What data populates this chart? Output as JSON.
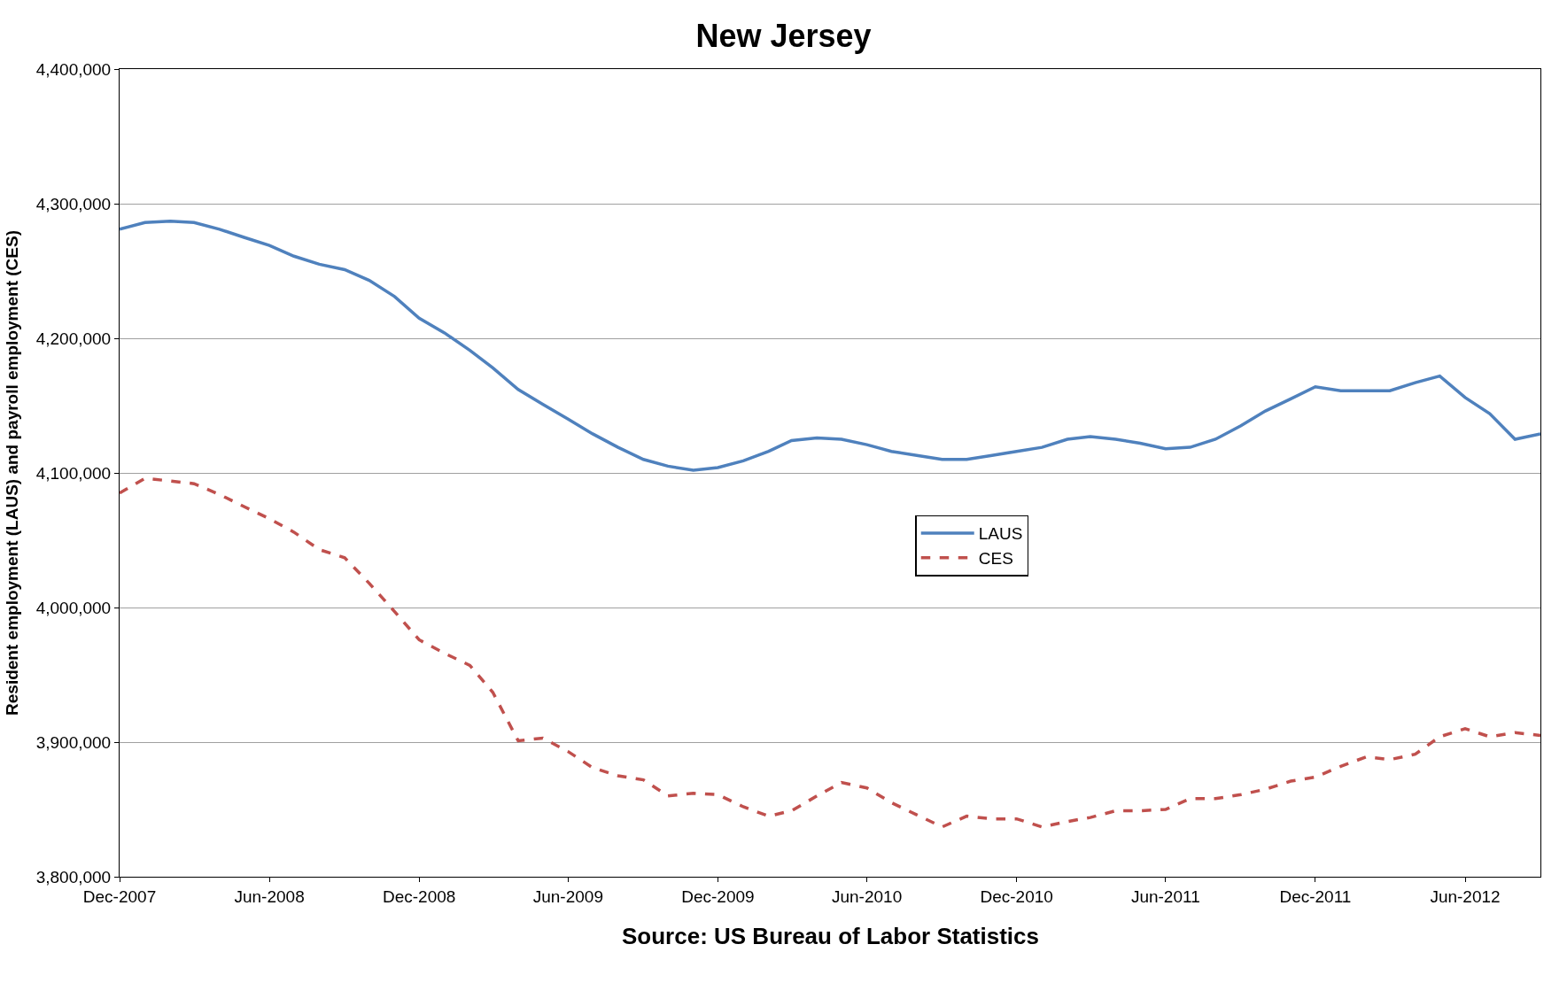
{
  "chart_data": {
    "type": "line",
    "title": "New Jersey",
    "ylabel": "Resident employment (LAUS) and payroll employment (CES)",
    "annotations": [
      "Source: US Bureau of Labor Statistics"
    ],
    "x": [
      "2007-12",
      "2008-01",
      "2008-02",
      "2008-03",
      "2008-04",
      "2008-05",
      "2008-06",
      "2008-07",
      "2008-08",
      "2008-09",
      "2008-10",
      "2008-11",
      "2008-12",
      "2009-01",
      "2009-02",
      "2009-03",
      "2009-04",
      "2009-05",
      "2009-06",
      "2009-07",
      "2009-08",
      "2009-09",
      "2009-10",
      "2009-11",
      "2009-12",
      "2010-01",
      "2010-02",
      "2010-03",
      "2010-04",
      "2010-05",
      "2010-06",
      "2010-07",
      "2010-08",
      "2010-09",
      "2010-10",
      "2010-11",
      "2010-12",
      "2011-01",
      "2011-02",
      "2011-03",
      "2011-04",
      "2011-05",
      "2011-06",
      "2011-07",
      "2011-08",
      "2011-09",
      "2011-10",
      "2011-11",
      "2011-12",
      "2012-01",
      "2012-02",
      "2012-03",
      "2012-04",
      "2012-05",
      "2012-06",
      "2012-07",
      "2012-08",
      "2012-09"
    ],
    "series": [
      {
        "name": "LAUS",
        "color": "#4f81bd",
        "line_style": "solid",
        "values": [
          4281000,
          4286000,
          4287000,
          4286000,
          4281000,
          4275000,
          4269000,
          4261000,
          4255000,
          4251000,
          4243000,
          4231000,
          4215000,
          4204000,
          4191000,
          4178000,
          4162000,
          4151000,
          4140000,
          4129000,
          4119000,
          4110000,
          4105000,
          4102000,
          4104000,
          4109000,
          4116000,
          4124000,
          4126000,
          4125000,
          4121000,
          4116000,
          4113000,
          4110000,
          4110000,
          4113000,
          4116000,
          4119000,
          4125000,
          4127000,
          4125000,
          4122000,
          4118000,
          4119000,
          4125000,
          4135000,
          4146000,
          4155000,
          4164000,
          4161000,
          4161000,
          4161000,
          4167000,
          4172000,
          4156000,
          4144000,
          4125000,
          4129000
        ]
      },
      {
        "name": "CES",
        "color": "#c0504d",
        "line_style": "dashed",
        "values": [
          4085000,
          4096000,
          4094000,
          4092000,
          4084000,
          4075000,
          4066000,
          4056000,
          4043000,
          4037000,
          4018000,
          3997000,
          3976000,
          3966000,
          3957000,
          3937000,
          3901000,
          3903000,
          3893000,
          3881000,
          3875000,
          3872000,
          3860000,
          3862000,
          3861000,
          3852000,
          3845000,
          3849000,
          3860000,
          3870000,
          3866000,
          3855000,
          3846000,
          3837000,
          3845000,
          3843000,
          3843000,
          3837000,
          3841000,
          3844000,
          3849000,
          3849000,
          3850000,
          3858000,
          3858000,
          3861000,
          3865000,
          3871000,
          3874000,
          3882000,
          3889000,
          3887000,
          3891000,
          3904000,
          3910000,
          3904000,
          3907000,
          3905000
        ]
      }
    ],
    "xlim": [
      "2007-12",
      "2012-09"
    ],
    "xticks": [
      {
        "value": "2007-12",
        "label": "Dec-2007"
      },
      {
        "value": "2008-06",
        "label": "Jun-2008"
      },
      {
        "value": "2008-12",
        "label": "Dec-2008"
      },
      {
        "value": "2009-06",
        "label": "Jun-2009"
      },
      {
        "value": "2009-12",
        "label": "Dec-2009"
      },
      {
        "value": "2010-06",
        "label": "Jun-2010"
      },
      {
        "value": "2010-12",
        "label": "Dec-2010"
      },
      {
        "value": "2011-06",
        "label": "Jun-2011"
      },
      {
        "value": "2011-12",
        "label": "Dec-2011"
      },
      {
        "value": "2012-06",
        "label": "Jun-2012"
      }
    ],
    "ylim": [
      3800000,
      4400000
    ],
    "yticks": [
      {
        "value": 3800000,
        "label": "3,800,000"
      },
      {
        "value": 3900000,
        "label": "3,900,000"
      },
      {
        "value": 4000000,
        "label": "4,000,000"
      },
      {
        "value": 4100000,
        "label": "4,100,000"
      },
      {
        "value": 4200000,
        "label": "4,200,000"
      },
      {
        "value": 4300000,
        "label": "4,300,000"
      },
      {
        "value": 4400000,
        "label": "4,400,000"
      }
    ],
    "grid": "y",
    "legend": "center",
    "marker": "none"
  }
}
